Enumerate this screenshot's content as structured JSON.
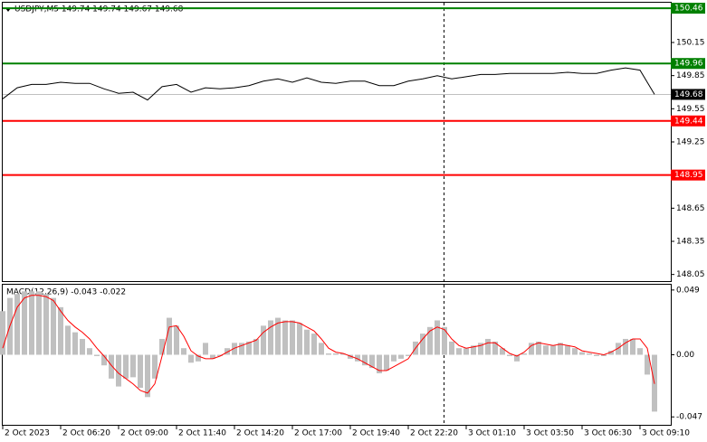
{
  "chart_data": [
    {
      "type": "line",
      "title": "USDJPY,M5  149.74 149.74 149.67 149.68",
      "color": "#000000",
      "values": [
        149.64,
        149.74,
        149.77,
        149.77,
        149.79,
        149.78,
        149.78,
        149.73,
        149.69,
        149.7,
        149.63,
        149.75,
        149.77,
        149.7,
        149.74,
        149.73,
        149.74,
        149.76,
        149.8,
        149.82,
        149.79,
        149.83,
        149.79,
        149.78,
        149.8,
        149.8,
        149.76,
        149.76,
        149.8,
        149.82,
        149.85,
        149.82,
        149.84,
        149.86,
        149.86,
        149.87,
        149.87,
        149.87,
        149.87,
        149.88,
        149.87,
        149.87,
        149.9,
        149.92,
        149.9,
        149.68
      ],
      "xlim": [
        0,
        46
      ],
      "ylim": [
        147.99,
        150.51
      ],
      "yticks": [
        148.05,
        148.35,
        148.65,
        149.25,
        149.55,
        149.85,
        150.15
      ],
      "levels": [
        {
          "value": 150.46,
          "color": "#008000"
        },
        {
          "value": 149.96,
          "color": "#008000"
        },
        {
          "value": 149.44,
          "color": "#ff0000"
        },
        {
          "value": 148.95,
          "color": "#ff0000"
        }
      ],
      "last_color": "#c0c0c0"
    },
    {
      "type": "macd",
      "title": "MACD(12,26,9) -0.043 -0.022",
      "histogram": {
        "color": "#c0c0c0",
        "values": [
          0.033,
          0.043,
          0.046,
          0.048,
          0.048,
          0.048,
          0.046,
          0.043,
          0.036,
          0.022,
          0.017,
          0.012,
          0.005,
          -0.001,
          -0.008,
          -0.018,
          -0.024,
          -0.018,
          -0.017,
          -0.025,
          -0.032,
          -0.018,
          0.012,
          0.028,
          0.022,
          0.005,
          -0.006,
          -0.005,
          0.009,
          -0.003,
          -0.001,
          0.005,
          0.009,
          0.009,
          0.01,
          0.012,
          0.022,
          0.026,
          0.028,
          0.026,
          0.026,
          0.024,
          0.019,
          0.016,
          0.009,
          0.001,
          0.001,
          0.001,
          -0.003,
          -0.005,
          -0.008,
          -0.01,
          -0.014,
          -0.012,
          -0.005,
          -0.003,
          -0.001,
          0.01,
          0.016,
          0.021,
          0.026,
          0.021,
          0.01,
          0.005,
          0.005,
          0.007,
          0.009,
          0.012,
          0.01,
          0.005,
          -0.001,
          -0.005,
          0.001,
          0.009,
          0.01,
          0.007,
          0.007,
          0.009,
          0.007,
          0.005,
          0.002,
          0.001,
          -0.001,
          -0.001,
          0.003,
          0.009,
          0.012,
          0.012,
          0.005,
          -0.015,
          -0.043
        ]
      },
      "signal": {
        "color": "#ff0000",
        "values": [
          0.005,
          0.022,
          0.036,
          0.043,
          0.045,
          0.045,
          0.044,
          0.041,
          0.033,
          0.026,
          0.021,
          0.017,
          0.012,
          0.005,
          -0.001,
          -0.008,
          -0.014,
          -0.018,
          -0.022,
          -0.027,
          -0.029,
          -0.022,
          -0.001,
          0.021,
          0.022,
          0.014,
          0.003,
          -0.001,
          -0.003,
          -0.003,
          -0.001,
          0.002,
          0.005,
          0.007,
          0.009,
          0.011,
          0.017,
          0.021,
          0.024,
          0.025,
          0.025,
          0.024,
          0.021,
          0.018,
          0.012,
          0.005,
          0.002,
          0.001,
          -0.001,
          -0.003,
          -0.006,
          -0.009,
          -0.012,
          -0.012,
          -0.009,
          -0.006,
          -0.003,
          0.005,
          0.012,
          0.018,
          0.021,
          0.019,
          0.012,
          0.007,
          0.005,
          0.006,
          0.007,
          0.009,
          0.009,
          0.005,
          0.001,
          -0.001,
          0.002,
          0.007,
          0.009,
          0.008,
          0.007,
          0.008,
          0.007,
          0.006,
          0.003,
          0.002,
          0.001,
          0,
          0.002,
          0.005,
          0.009,
          0.012,
          0.012,
          0.005,
          -0.022
        ]
      },
      "xlim": [
        0,
        92
      ],
      "ylim": [
        -0.053,
        0.053
      ],
      "yticks": [
        -0.047,
        {
          "value": 0,
          "label": "0.00"
        },
        0.049
      ],
      "xticks": [
        {
          "value": 0,
          "label": "2 Oct 2023"
        },
        {
          "value": 8,
          "label": "2 Oct 06:20"
        },
        {
          "value": 16,
          "label": "2 Oct 09:00"
        },
        {
          "value": 24,
          "label": "2 Oct 11:40"
        },
        {
          "value": 32,
          "label": "2 Oct 14:20"
        },
        {
          "value": 40,
          "label": "2 Oct 17:00"
        },
        {
          "value": 48,
          "label": "2 Oct 19:40"
        },
        {
          "value": 56,
          "label": "2 Oct 22:20"
        },
        {
          "value": 64,
          "label": "3 Oct 01:10"
        },
        {
          "value": 72,
          "label": "3 Oct 03:50"
        },
        {
          "value": 80,
          "label": "3 Oct 06:30"
        },
        {
          "value": 88,
          "label": "3 Oct 09:10"
        }
      ]
    }
  ]
}
